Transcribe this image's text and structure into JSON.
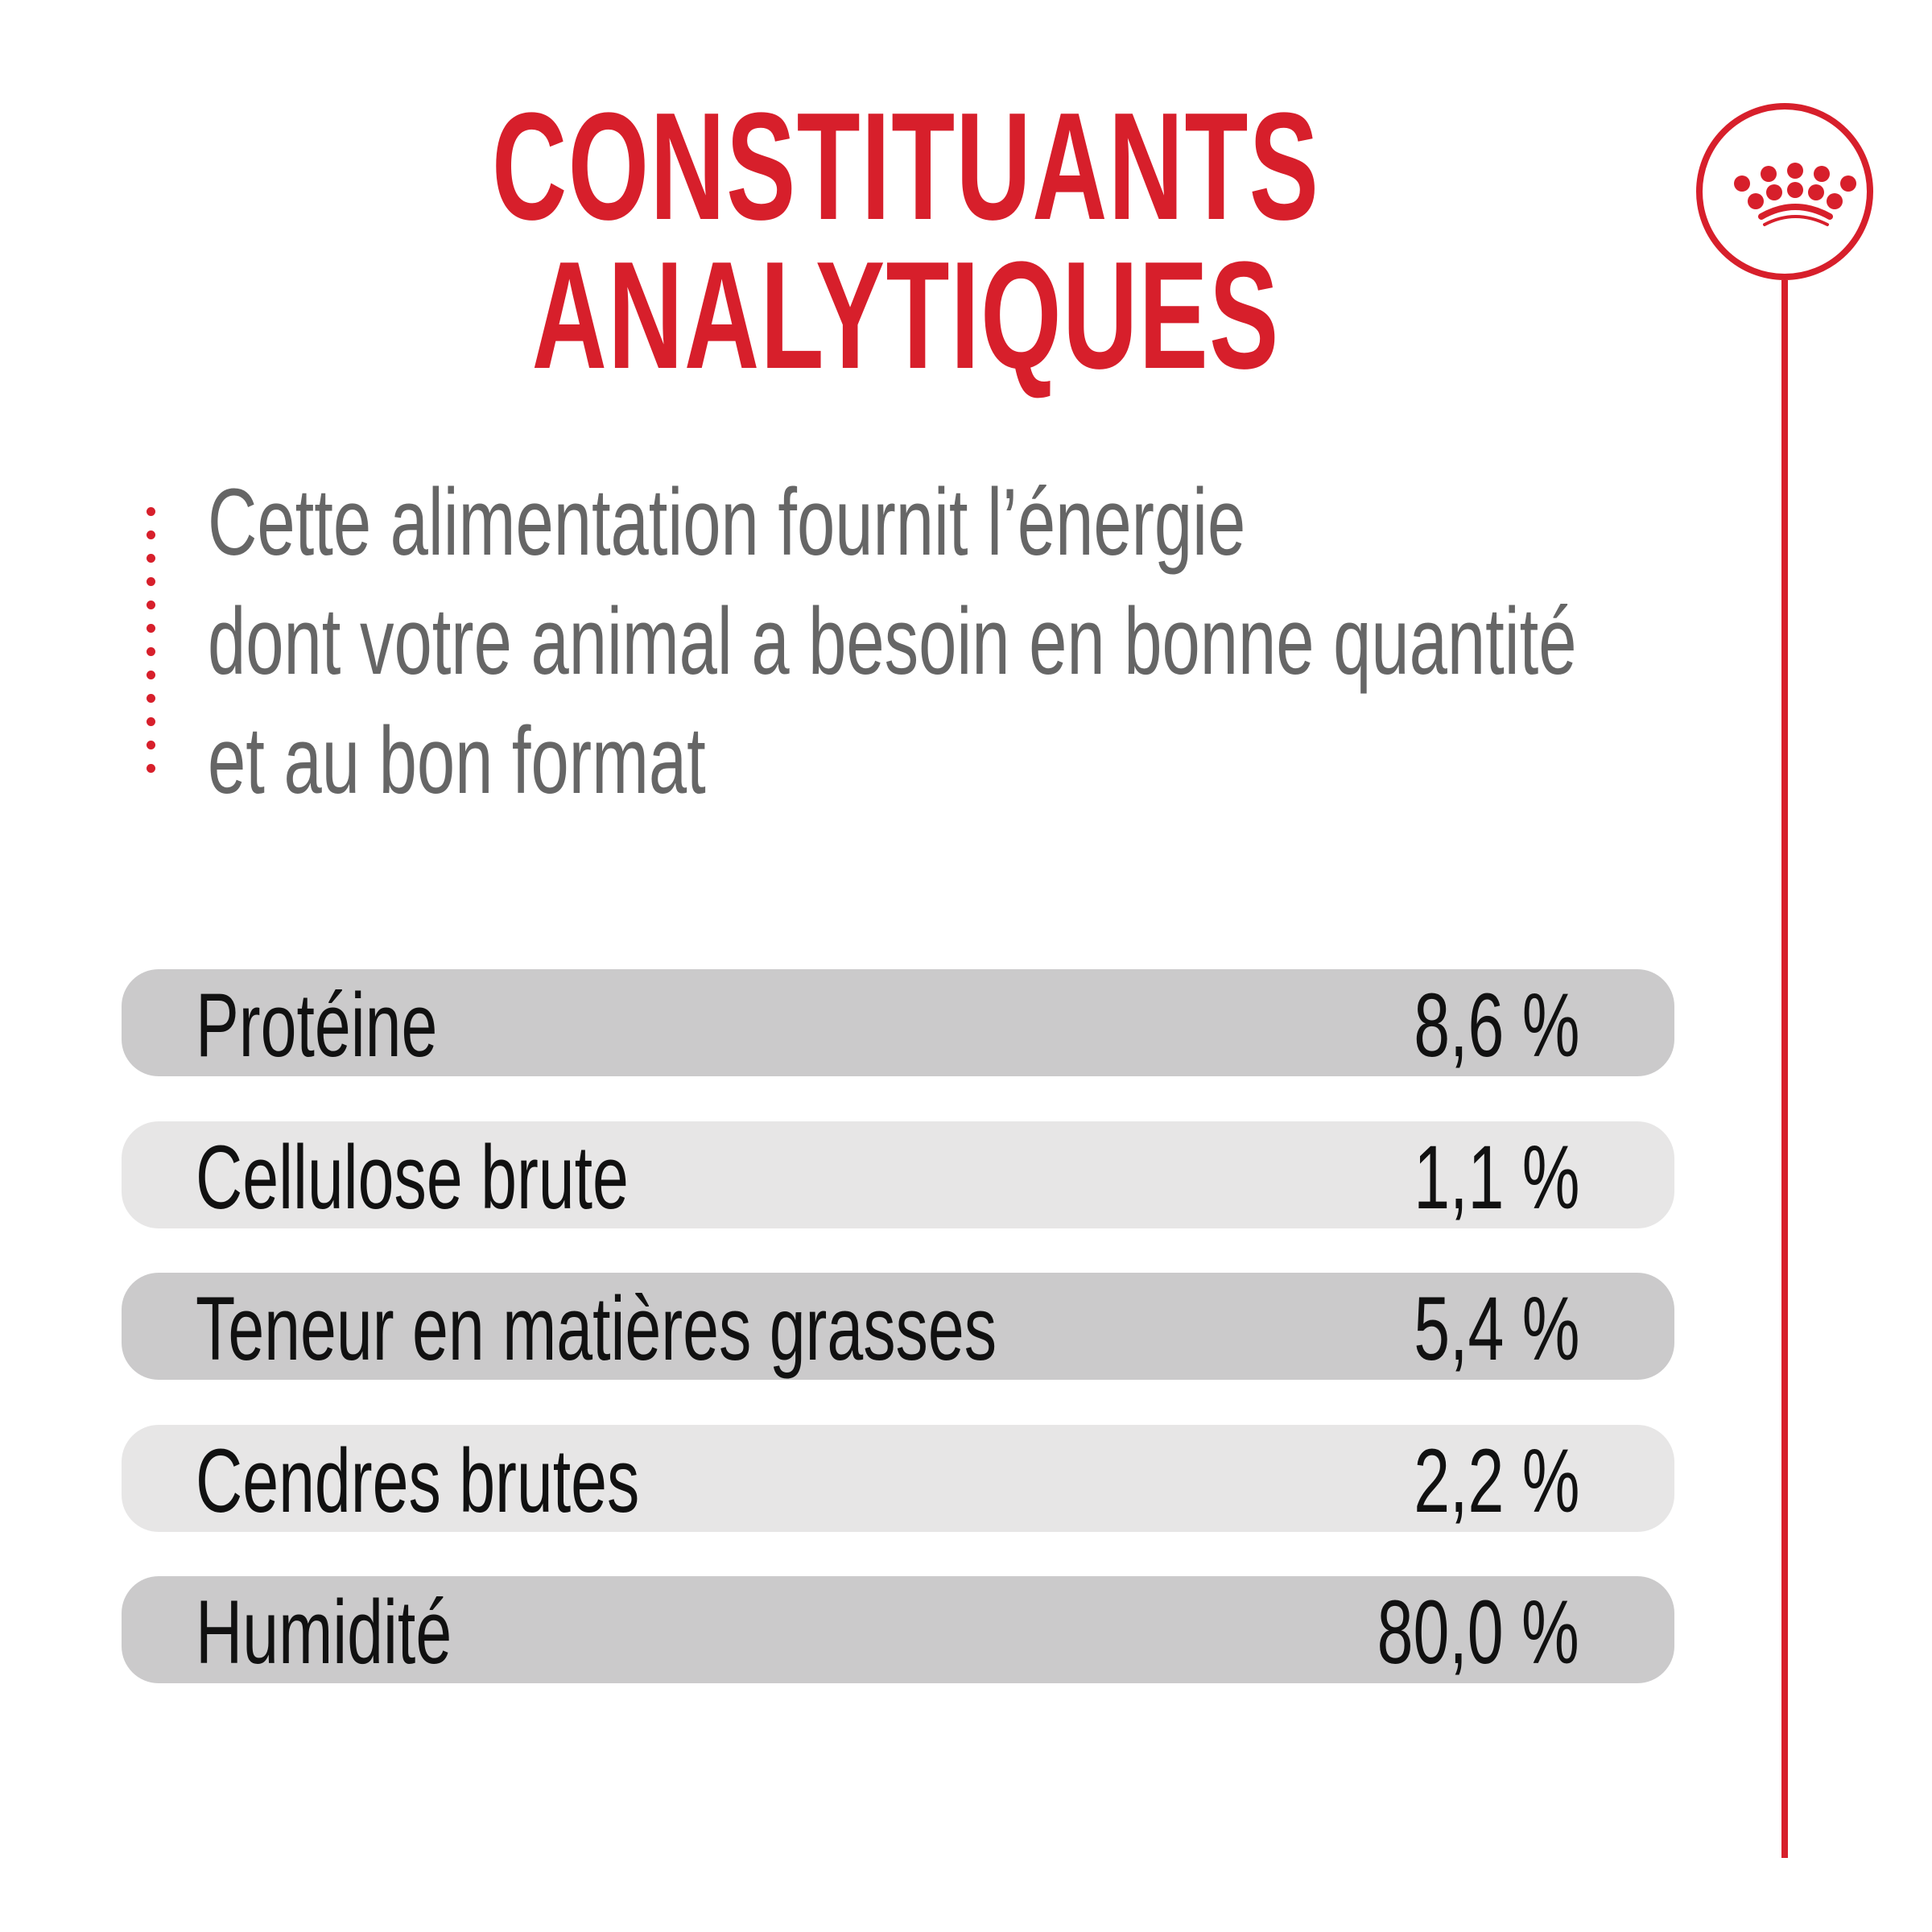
{
  "title": {
    "line1": "CONSTITUANTS",
    "line2": "ANALYTIQUES"
  },
  "intro": {
    "line1": "Cette alimentation fournit l’énergie",
    "line2": "dont votre animal a besoin en bonne quantité",
    "line3": "et au bon format"
  },
  "rows": [
    {
      "label": "Protéine",
      "value": "8,6 %"
    },
    {
      "label": "Cellulose brute",
      "value": "1,1 %"
    },
    {
      "label": "Teneur en matières grasses",
      "value": "5,4 %"
    },
    {
      "label": "Cendres brutes",
      "value": "2,2 %"
    },
    {
      "label": "Humidité",
      "value": "80,0 %"
    }
  ],
  "colors": {
    "accent": "#d71f2b",
    "row_dark": "#cbcacb",
    "row_light": "#e7e6e6",
    "intro_text": "#666666"
  },
  "logo": {
    "icon": "crown-icon"
  }
}
